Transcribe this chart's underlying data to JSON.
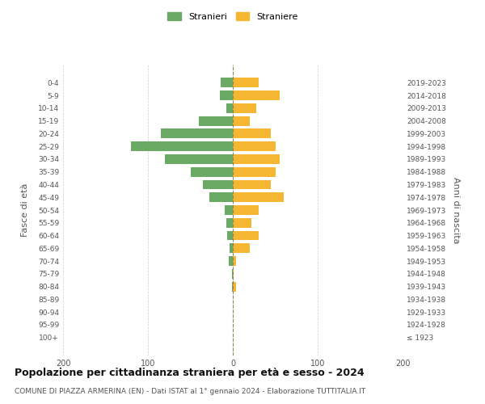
{
  "age_groups": [
    "100+",
    "95-99",
    "90-94",
    "85-89",
    "80-84",
    "75-79",
    "70-74",
    "65-69",
    "60-64",
    "55-59",
    "50-54",
    "45-49",
    "40-44",
    "35-39",
    "30-34",
    "25-29",
    "20-24",
    "15-19",
    "10-14",
    "5-9",
    "0-4"
  ],
  "birth_years": [
    "≤ 1923",
    "1924-1928",
    "1929-1933",
    "1934-1938",
    "1939-1943",
    "1944-1948",
    "1949-1953",
    "1954-1958",
    "1959-1963",
    "1964-1968",
    "1969-1973",
    "1974-1978",
    "1979-1983",
    "1984-1988",
    "1989-1993",
    "1994-1998",
    "1999-2003",
    "2004-2008",
    "2009-2013",
    "2014-2018",
    "2019-2023"
  ],
  "males": [
    0,
    0,
    0,
    0,
    1,
    1,
    5,
    4,
    7,
    8,
    10,
    28,
    35,
    50,
    80,
    120,
    85,
    40,
    8,
    15,
    14
  ],
  "females": [
    0,
    0,
    0,
    0,
    4,
    1,
    4,
    20,
    30,
    22,
    30,
    60,
    45,
    50,
    55,
    50,
    45,
    20,
    28,
    55,
    30
  ],
  "male_color": "#6aaa64",
  "female_color": "#f5b731",
  "title": "Popolazione per cittadinanza straniera per età e sesso - 2024",
  "subtitle": "COMUNE DI PIAZZA ARMERINA (EN) - Dati ISTAT al 1° gennaio 2024 - Elaborazione TUTTITALIA.IT",
  "ylabel_left": "Fasce di età",
  "ylabel_right": "Anni di nascita",
  "legend_male": "Stranieri",
  "legend_female": "Straniere",
  "xlim": 200,
  "background_color": "#ffffff",
  "grid_color": "#cccccc"
}
